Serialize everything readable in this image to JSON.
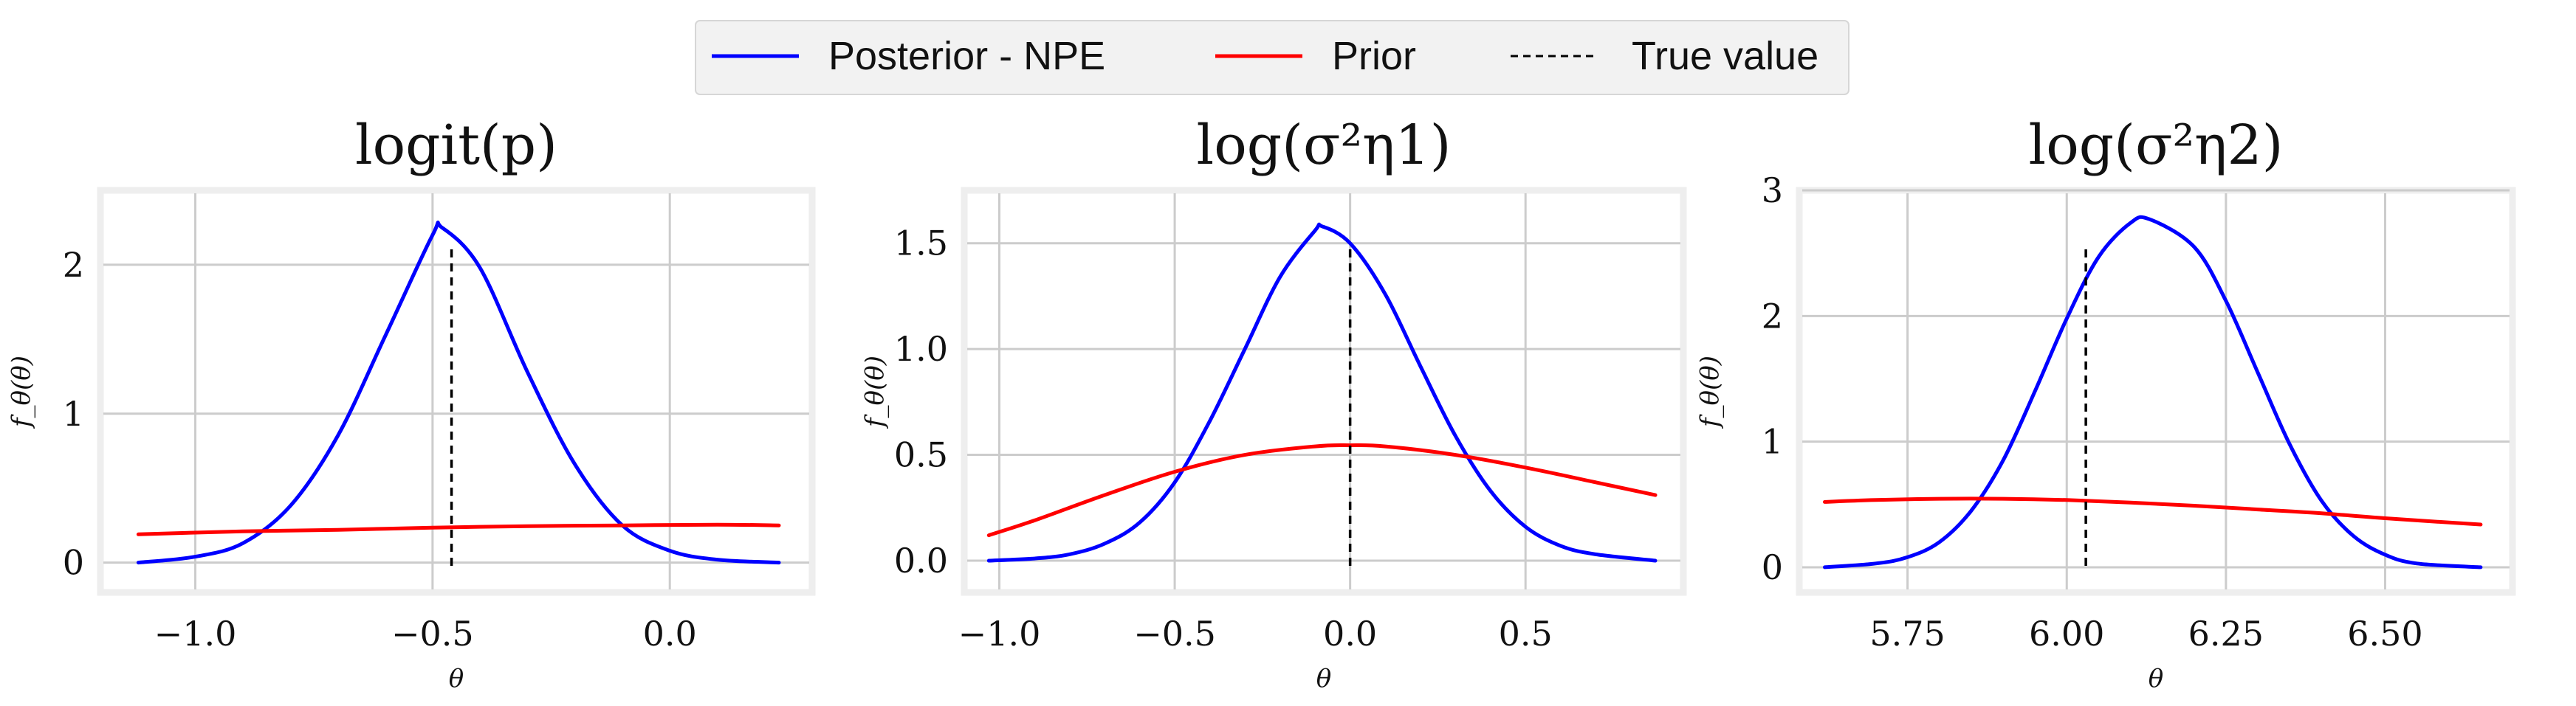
{
  "legend": {
    "items": [
      {
        "label": "Posterior - NPE",
        "color": "#0000ff",
        "style": "solid"
      },
      {
        "label": "Prior",
        "color": "#ff0000",
        "style": "solid"
      },
      {
        "label": "True value",
        "color": "#000000",
        "style": "dashed"
      }
    ]
  },
  "chart_data": [
    {
      "type": "line",
      "title": "logit(p)",
      "xlabel": "θ",
      "ylabel": "f_θ(θ)",
      "xlim": [
        -1.2,
        0.3
      ],
      "ylim": [
        -0.2,
        2.5
      ],
      "xticks": [
        -1.0,
        -0.5,
        0.0
      ],
      "xtick_labels": [
        "−1.0",
        "−0.5",
        "0.0"
      ],
      "yticks": [
        0,
        1,
        2
      ],
      "ytick_labels": [
        "0",
        "1",
        "2"
      ],
      "grid": true,
      "true_value": -0.46,
      "series": [
        {
          "name": "Posterior - NPE",
          "color": "#0000ff",
          "x": [
            -1.12,
            -1.0,
            -0.9,
            -0.8,
            -0.7,
            -0.6,
            -0.5,
            -0.48,
            -0.4,
            -0.3,
            -0.2,
            -0.1,
            0.0,
            0.1,
            0.23
          ],
          "y": [
            0.0,
            0.04,
            0.13,
            0.38,
            0.85,
            1.52,
            2.2,
            2.25,
            1.98,
            1.28,
            0.66,
            0.25,
            0.08,
            0.02,
            0.0
          ]
        },
        {
          "name": "Prior",
          "color": "#ff0000",
          "x": [
            -1.12,
            -0.9,
            -0.7,
            -0.5,
            -0.3,
            -0.1,
            0.1,
            0.23
          ],
          "y": [
            0.19,
            0.21,
            0.22,
            0.235,
            0.245,
            0.25,
            0.255,
            0.25
          ]
        }
      ]
    },
    {
      "type": "line",
      "title": "log(σ²η1)",
      "xlabel": "θ",
      "ylabel": "f_θ(θ)",
      "xlim": [
        -1.1,
        0.95
      ],
      "ylim": [
        -0.15,
        1.75
      ],
      "xticks": [
        -1.0,
        -0.5,
        0.0,
        0.5
      ],
      "xtick_labels": [
        "−1.0",
        "−0.5",
        "0.0",
        "0.5"
      ],
      "yticks": [
        0.0,
        0.5,
        1.0,
        1.5
      ],
      "ytick_labels": [
        "0.0",
        "0.5",
        "1.0",
        "1.5"
      ],
      "grid": true,
      "true_value": 0.0,
      "series": [
        {
          "name": "Posterior - NPE",
          "color": "#0000ff",
          "x": [
            -1.03,
            -0.9,
            -0.8,
            -0.7,
            -0.6,
            -0.5,
            -0.4,
            -0.3,
            -0.2,
            -0.1,
            -0.08,
            0.0,
            0.1,
            0.2,
            0.3,
            0.4,
            0.5,
            0.6,
            0.7,
            0.87
          ],
          "y": [
            0.0,
            0.01,
            0.03,
            0.08,
            0.18,
            0.37,
            0.66,
            1.0,
            1.34,
            1.56,
            1.58,
            1.5,
            1.26,
            0.92,
            0.59,
            0.33,
            0.16,
            0.07,
            0.03,
            0.0
          ]
        },
        {
          "name": "Prior",
          "color": "#ff0000",
          "x": [
            -1.03,
            -0.9,
            -0.7,
            -0.5,
            -0.3,
            -0.1,
            0.0,
            0.1,
            0.3,
            0.5,
            0.7,
            0.87
          ],
          "y": [
            0.12,
            0.19,
            0.31,
            0.42,
            0.5,
            0.54,
            0.545,
            0.54,
            0.5,
            0.44,
            0.37,
            0.31
          ]
        }
      ]
    },
    {
      "type": "line",
      "title": "log(σ²η2)",
      "xlabel": "θ",
      "ylabel": "f_θ(θ)",
      "xlim": [
        5.58,
        6.7
      ],
      "ylim": [
        -0.2,
        3.0
      ],
      "xticks": [
        5.75,
        6.0,
        6.25,
        6.5
      ],
      "xtick_labels": [
        "5.75",
        "6.00",
        "6.25",
        "6.50"
      ],
      "yticks": [
        0,
        1,
        2,
        3
      ],
      "ytick_labels": [
        "0",
        "1",
        "2",
        "3"
      ],
      "grid": true,
      "true_value": 6.03,
      "series": [
        {
          "name": "Posterior - NPE",
          "color": "#0000ff",
          "x": [
            5.62,
            5.7,
            5.75,
            5.8,
            5.85,
            5.9,
            5.95,
            6.0,
            6.05,
            6.1,
            6.13,
            6.2,
            6.25,
            6.3,
            6.35,
            6.4,
            6.45,
            6.5,
            6.55,
            6.65
          ],
          "y": [
            0.0,
            0.03,
            0.08,
            0.2,
            0.45,
            0.85,
            1.4,
            1.98,
            2.47,
            2.74,
            2.77,
            2.55,
            2.12,
            1.55,
            0.98,
            0.53,
            0.25,
            0.1,
            0.03,
            0.0
          ]
        },
        {
          "name": "Prior",
          "color": "#ff0000",
          "x": [
            5.62,
            5.7,
            5.8,
            5.9,
            6.0,
            6.1,
            6.2,
            6.3,
            6.4,
            6.5,
            6.65
          ],
          "y": [
            0.52,
            0.535,
            0.545,
            0.545,
            0.535,
            0.515,
            0.49,
            0.46,
            0.43,
            0.39,
            0.34
          ]
        }
      ]
    }
  ]
}
